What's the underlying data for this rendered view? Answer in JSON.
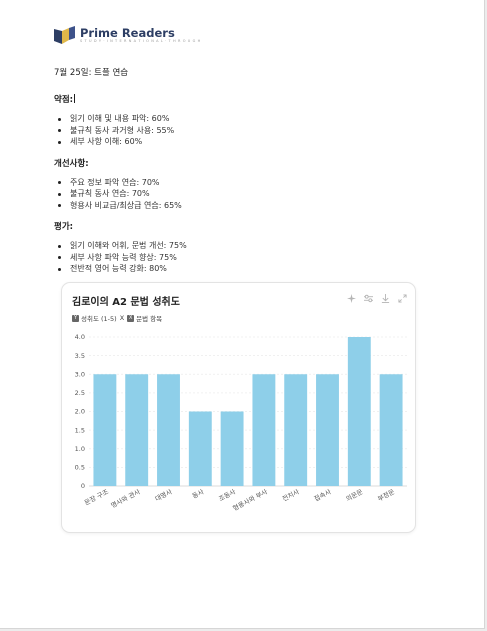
{
  "brand": {
    "name": "Prime Readers",
    "tagline": "S T U D Y · I N T E R N A T I O N A L · T H R O U G H",
    "colors": {
      "navy": "#2d3e64",
      "gold": "#e0b84a"
    }
  },
  "document": {
    "title": "7월 25일: 트플 연습",
    "sections": [
      {
        "title": "약점:",
        "items": [
          "읽기 이해 및 내용 파악: 60%",
          "불규칙 동사 과거형 사용: 55%",
          "세부 사항 이해: 60%"
        ]
      },
      {
        "title": "개선사항:",
        "items": [
          "주요 정보 파악 연습: 70%",
          "불규칙 동사 연습: 70%",
          "형용사 비교급/최상급 연습: 65%"
        ]
      },
      {
        "title": "평가:",
        "items": [
          "읽기 이해와 어휘, 문법 개선: 75%",
          "세부 사항 파악 능력 향상: 75%",
          "전반적 영어 능력 강화: 80%"
        ]
      }
    ]
  },
  "chart_card": {
    "title": "김로이의 A2 문법 성취도",
    "subtitle": {
      "y_badge": "Y",
      "y_label": "성취도 (1-5)",
      "x_sep": "X",
      "x_badge": "X",
      "x_label": "문법 항목"
    },
    "tools": [
      "sparkle-icon",
      "settings-sliders-icon",
      "download-icon",
      "expand-icon"
    ]
  },
  "chart_data": {
    "type": "bar",
    "title": "김로이의 A2 문법 성취도",
    "categories": [
      "문장 구조",
      "명사와 관사",
      "대명사",
      "동사",
      "조동사",
      "형용사와 부사",
      "전치사",
      "접속사",
      "의문문",
      "부정문"
    ],
    "values": [
      3,
      3,
      3,
      2,
      2,
      3,
      3,
      3,
      4,
      3
    ],
    "ylim": [
      0,
      4
    ],
    "yticks": [
      "0",
      "0.5",
      "1.0",
      "1.5",
      "2.0",
      "2.5",
      "3.0",
      "3.5",
      "4.0"
    ],
    "bar_color": "#8ecfe9",
    "grid": true,
    "xlabel": "",
    "ylabel": ""
  }
}
